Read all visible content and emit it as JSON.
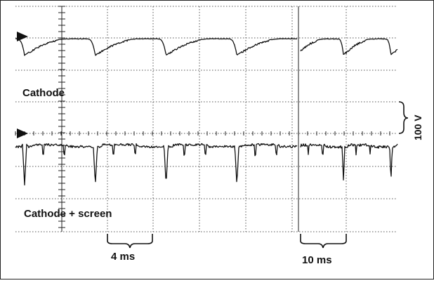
{
  "chart_data": {
    "type": "line",
    "title": "",
    "grid": true,
    "labels": {
      "trace_top": "Cathode",
      "trace_bottom": "Cathode + screen",
      "vertical_scale": "100 V",
      "time_scale_left": "4 ms",
      "time_scale_right": "10 ms"
    },
    "panels": [
      {
        "timebase": "4 ms",
        "series": [
          {
            "name": "Cathode",
            "shape": "parabolic dips",
            "period_ms": 6.2,
            "first_dip_ms": 0.8,
            "dip_depth_v": 52,
            "ripple_v": 5
          },
          {
            "name": "Cathode + screen",
            "shape": "needle dips",
            "period_ms": 6.2,
            "first_dip_ms": 0.8,
            "dip_depth_v": 130,
            "ripple_v": 8
          }
        ]
      },
      {
        "timebase": "10 ms",
        "series": [
          {
            "name": "Cathode",
            "shape": "parabolic dips",
            "period_ms": 10.4,
            "first_dip_ms": 9.4,
            "dip_depth_v": 50,
            "ripple_v": 6
          },
          {
            "name": "Cathode + screen",
            "shape": "needle dips",
            "period_ms": 10.4,
            "first_dip_ms": 9.4,
            "dip_depth_v": 120,
            "ripple_v": 9
          }
        ]
      }
    ]
  }
}
